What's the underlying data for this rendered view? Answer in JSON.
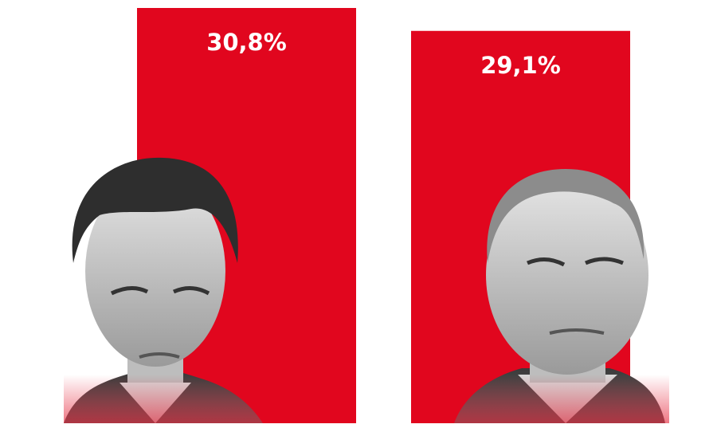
{
  "chart_data": {
    "type": "bar",
    "categories": [
      null,
      null
    ],
    "values": [
      30.8,
      29.1
    ],
    "value_labels": [
      "30,8%",
      "29,1%"
    ],
    "color": "#e1061e"
  }
}
